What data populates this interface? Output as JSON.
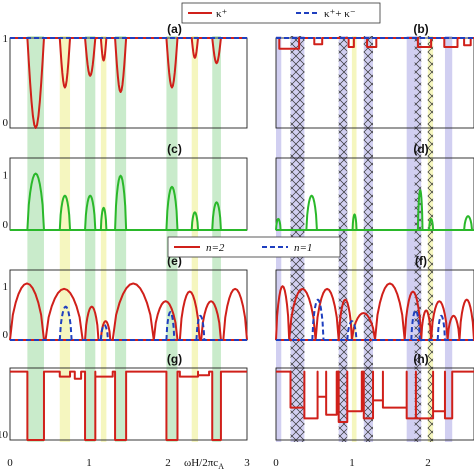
{
  "chart_data": {
    "type": "line",
    "x_label": "ωH/2πc",
    "x_label_sub": "A",
    "x_ticks": [
      "0",
      "1",
      "2",
      "3"
    ],
    "xlim": [
      0,
      3
    ],
    "legend_top": [
      {
        "label": "κ⁺",
        "color": "#d0201a",
        "dash": "solid"
      },
      {
        "label": "κ⁺+ κ⁻",
        "color": "#1f3fbf",
        "dash": "dashed"
      }
    ],
    "legend_mid": [
      {
        "label": "n=2",
        "color": "#d0201a",
        "dash": "solid"
      },
      {
        "label": "n=1",
        "color": "#1f3fbf",
        "dash": "dashed"
      }
    ],
    "colors": {
      "red": "#d0201a",
      "blue": "#1f3fbf",
      "green": "#2ab82a",
      "green_band": "#bfe8c2",
      "yellow_band": "#f3f5b4",
      "purple_band": "#c9c7ee"
    },
    "bands_left": [
      {
        "x0": 0.22,
        "x1": 0.43,
        "color": "green"
      },
      {
        "x0": 0.63,
        "x1": 0.76,
        "color": "yellow"
      },
      {
        "x0": 0.95,
        "x1": 1.08,
        "color": "green"
      },
      {
        "x0": 1.15,
        "x1": 1.22,
        "color": "yellow"
      },
      {
        "x0": 1.33,
        "x1": 1.47,
        "color": "green"
      },
      {
        "x0": 1.98,
        "x1": 2.12,
        "color": "green"
      },
      {
        "x0": 2.3,
        "x1": 2.38,
        "color": "yellow"
      },
      {
        "x0": 2.56,
        "x1": 2.67,
        "color": "green"
      }
    ],
    "bands_right": [
      {
        "x0": 0.0,
        "x1": 0.08,
        "color": "purple",
        "hatch": false
      },
      {
        "x0": 0.22,
        "x1": 0.43,
        "color": "purple",
        "hatch": true
      },
      {
        "x0": 0.95,
        "x1": 1.08,
        "color": "purple",
        "hatch": true
      },
      {
        "x0": 1.15,
        "x1": 1.22,
        "color": "yellow",
        "hatch": false
      },
      {
        "x0": 1.33,
        "x1": 1.47,
        "color": "purple",
        "hatch": true
      },
      {
        "x0": 1.98,
        "x1": 2.1,
        "color": "purple",
        "hatch": false
      },
      {
        "x0": 2.1,
        "x1": 2.2,
        "color": "purple",
        "hatch": true
      },
      {
        "x0": 2.3,
        "x1": 2.38,
        "color": "yellow",
        "hatch": true
      },
      {
        "x0": 2.56,
        "x1": 2.67,
        "color": "purple",
        "hatch": false
      }
    ],
    "panels": [
      {
        "id": "a",
        "label": "(a)",
        "y_ticks": [
          "1",
          "0"
        ],
        "ylim": [
          0,
          1
        ],
        "series": [
          {
            "color": "red",
            "dash": "solid",
            "kind": "dips",
            "base": 1,
            "dips": [
              [
                0.22,
                0.43,
                0.0
              ],
              [
                0.63,
                0.76,
                0.45
              ],
              [
                0.95,
                1.08,
                0.58
              ],
              [
                1.15,
                1.22,
                0.75
              ],
              [
                1.33,
                1.47,
                0.4
              ],
              [
                1.98,
                2.12,
                0.45
              ],
              [
                2.3,
                2.38,
                0.78
              ],
              [
                2.56,
                2.67,
                0.72
              ]
            ]
          },
          {
            "color": "blue",
            "dash": "dashed",
            "kind": "flat",
            "value": 1
          }
        ]
      },
      {
        "id": "b",
        "label": "(b)",
        "y_ticks": [],
        "ylim": [
          0,
          1
        ],
        "series": [
          {
            "color": "red",
            "dash": "solid",
            "kind": "steps",
            "base": 1,
            "steps": [
              [
                0.05,
                0.35,
                0.88
              ],
              [
                0.58,
                0.7,
                0.93
              ],
              [
                1.1,
                1.18,
                0.9
              ],
              [
                1.38,
                1.52,
                0.9
              ],
              [
                2.15,
                2.35,
                0.9
              ],
              [
                2.55,
                2.75,
                0.9
              ],
              [
                2.85,
                2.95,
                0.92
              ]
            ]
          },
          {
            "color": "blue",
            "dash": "dashed",
            "kind": "flat",
            "value": 1
          }
        ]
      },
      {
        "id": "c",
        "label": "(c)",
        "y_ticks": [
          "1",
          "0"
        ],
        "ylim": [
          0,
          1.3
        ],
        "series": [
          {
            "color": "green",
            "dash": "solid",
            "kind": "bumps",
            "bumps": [
              [
                0.22,
                0.43,
                1.02
              ],
              [
                0.63,
                0.76,
                0.62
              ],
              [
                0.95,
                1.08,
                0.62
              ],
              [
                1.15,
                1.22,
                0.4
              ],
              [
                1.33,
                1.47,
                0.98
              ],
              [
                1.98,
                2.12,
                0.78
              ],
              [
                2.3,
                2.38,
                0.32
              ],
              [
                2.56,
                2.67,
                0.5
              ]
            ]
          }
        ]
      },
      {
        "id": "d",
        "label": "(d)",
        "y_ticks": [],
        "ylim": [
          0,
          1.3
        ],
        "series": [
          {
            "color": "green",
            "dash": "solid",
            "kind": "bumps",
            "bumps": [
              [
                0.0,
                0.07,
                0.2
              ],
              [
                0.46,
                0.62,
                0.62
              ],
              [
                1.16,
                1.22,
                0.28
              ],
              [
                2.15,
                2.22,
                0.72
              ],
              [
                2.32,
                2.38,
                0.2
              ],
              [
                2.85,
                2.97,
                0.25
              ]
            ]
          }
        ]
      },
      {
        "id": "e",
        "label": "(e)",
        "y_ticks": [
          "1",
          "0"
        ],
        "ylim": [
          0,
          1.3
        ],
        "series": [
          {
            "color": "red",
            "dash": "solid",
            "kind": "bumps",
            "bumps": [
              [
                0.0,
                0.43,
                1.05
              ],
              [
                0.45,
                0.92,
                0.95
              ],
              [
                0.95,
                1.12,
                0.62
              ],
              [
                1.15,
                1.27,
                0.35
              ],
              [
                1.3,
                1.82,
                1.05
              ],
              [
                1.82,
                2.12,
                0.72
              ],
              [
                2.15,
                2.4,
                0.9
              ],
              [
                2.42,
                2.67,
                0.72
              ],
              [
                2.7,
                3.0,
                0.95
              ]
            ]
          },
          {
            "color": "blue",
            "dash": "dashed",
            "kind": "bumps",
            "bumps": [
              [
                0.63,
                0.78,
                0.62
              ],
              [
                1.15,
                1.24,
                0.28
              ],
              [
                1.98,
                2.08,
                0.52
              ],
              [
                2.36,
                2.46,
                0.45
              ]
            ]
          }
        ]
      },
      {
        "id": "f",
        "label": "(f)",
        "y_ticks": [],
        "ylim": [
          0,
          1.3
        ],
        "series": [
          {
            "color": "red",
            "dash": "solid",
            "kind": "bumps",
            "bumps": [
              [
                0.0,
                0.2,
                1.0
              ],
              [
                0.2,
                0.6,
                0.95
              ],
              [
                0.6,
                0.95,
                0.95
              ],
              [
                0.95,
                1.15,
                0.75
              ],
              [
                1.15,
                1.5,
                0.5
              ],
              [
                1.5,
                1.95,
                1.05
              ],
              [
                1.95,
                2.2,
                0.9
              ],
              [
                2.2,
                2.35,
                0.55
              ],
              [
                2.35,
                2.6,
                0.72
              ],
              [
                2.6,
                2.78,
                0.45
              ],
              [
                2.78,
                3.0,
                0.75
              ]
            ]
          },
          {
            "color": "blue",
            "dash": "dashed",
            "kind": "bumps",
            "bumps": [
              [
                0.55,
                0.72,
                0.75
              ],
              [
                1.08,
                1.22,
                0.35
              ],
              [
                2.05,
                2.18,
                0.55
              ],
              [
                2.45,
                2.56,
                0.45
              ]
            ]
          }
        ]
      },
      {
        "id": "g",
        "label": "(g)",
        "y_ticks": [
          "",
          "10"
        ],
        "ylim": [
          0,
          1
        ],
        "series": [
          {
            "color": "red",
            "dash": "solid",
            "kind": "steps",
            "base": 0.95,
            "steps": [
              [
                0.22,
                0.43,
                0.0
              ],
              [
                0.63,
                0.76,
                0.88
              ],
              [
                0.82,
                0.9,
                0.85
              ],
              [
                0.95,
                1.08,
                0.0
              ],
              [
                1.08,
                1.3,
                0.88
              ],
              [
                1.33,
                1.47,
                0.0
              ],
              [
                1.98,
                2.12,
                0.0
              ],
              [
                2.15,
                2.38,
                0.88
              ],
              [
                2.38,
                2.52,
                0.9
              ],
              [
                2.56,
                2.67,
                0.0
              ]
            ]
          }
        ]
      },
      {
        "id": "h",
        "label": "(h)",
        "y_ticks": [],
        "ylim": [
          0,
          1
        ],
        "series": [
          {
            "color": "red",
            "dash": "solid",
            "kind": "steps",
            "base": 0.95,
            "steps": [
              [
                0.22,
                0.43,
                0.45
              ],
              [
                0.43,
                0.63,
                0.3
              ],
              [
                0.63,
                0.76,
                0.6
              ],
              [
                0.76,
                0.92,
                0.35
              ],
              [
                0.95,
                1.08,
                0.25
              ],
              [
                1.08,
                1.3,
                0.4
              ],
              [
                1.33,
                1.47,
                0.3
              ],
              [
                1.47,
                1.62,
                0.55
              ],
              [
                1.62,
                1.98,
                0.45
              ],
              [
                1.98,
                2.12,
                0.3
              ],
              [
                2.12,
                2.38,
                0.3
              ],
              [
                2.38,
                2.56,
                0.4
              ],
              [
                2.56,
                2.67,
                0.3
              ]
            ]
          }
        ]
      }
    ]
  }
}
